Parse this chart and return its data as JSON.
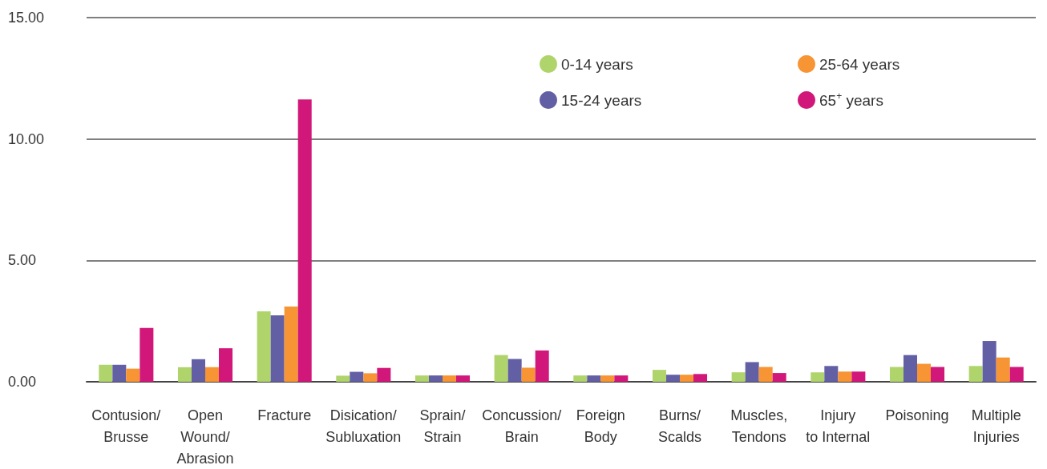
{
  "chart_data": {
    "type": "bar",
    "categories": [
      "Contusion/\nBrusse",
      "Open\nWound/\nAbrasion",
      "Fracture",
      "Disication/\nSubluxation",
      "Sprain/\nStrain",
      "Concussion/\nBrain",
      "Foreign\nBody",
      "Burns/\nScalds",
      "Muscles,\nTendons",
      "Injury\nto Internal",
      "Poisoning",
      "Multiple\nInjuries"
    ],
    "series": [
      {
        "name": "0-14 years",
        "color": "#b0d46c",
        "values": [
          0.7,
          0.6,
          2.9,
          0.25,
          0.26,
          1.1,
          0.26,
          0.49,
          0.39,
          0.39,
          0.61,
          0.65
        ]
      },
      {
        "name": "15-24 years",
        "color": "#635fa5",
        "values": [
          0.7,
          0.93,
          2.74,
          0.41,
          0.26,
          0.94,
          0.26,
          0.29,
          0.81,
          0.65,
          1.1,
          1.68
        ]
      },
      {
        "name": "25-64 years",
        "color": "#f79433",
        "values": [
          0.54,
          0.6,
          3.1,
          0.35,
          0.26,
          0.58,
          0.26,
          0.29,
          0.61,
          0.42,
          0.74,
          1.0
        ]
      },
      {
        "name": "65$^{+}$ years",
        "color": "#d2177a",
        "values": [
          2.22,
          1.38,
          11.63,
          0.57,
          0.26,
          1.29,
          0.26,
          0.32,
          0.36,
          0.42,
          0.61,
          0.61
        ]
      }
    ],
    "ylim": [
      0,
      15
    ],
    "yticks": [
      {
        "value": 0,
        "label": "0.00"
      },
      {
        "value": 5,
        "label": "5.00"
      },
      {
        "value": 10,
        "label": "10.00"
      },
      {
        "value": 15,
        "label": "15.00"
      }
    ],
    "grid": "y",
    "legend": "top right"
  }
}
